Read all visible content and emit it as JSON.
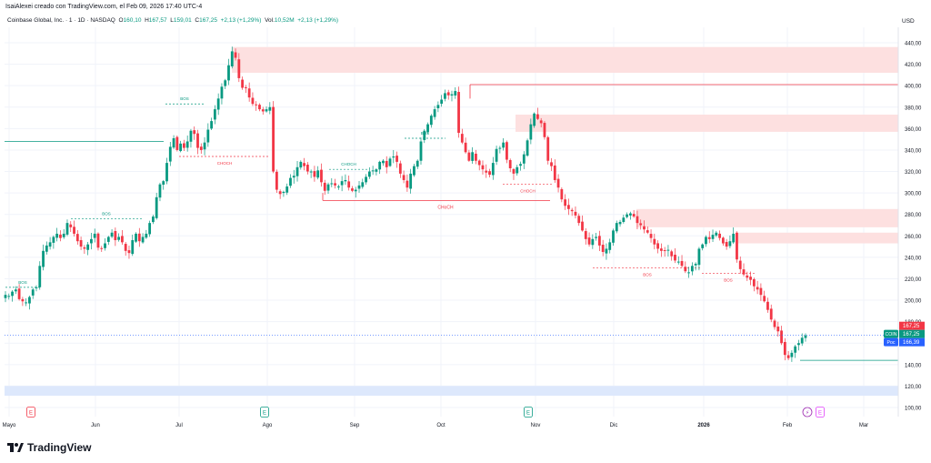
{
  "header": {
    "publish_line": "IsaiAlexei creado con TradingView.com, el Feb 09, 2026 17:40 UTC-4",
    "symbol": "Coinbase Global, Inc. · 1 · 1D · NASDAQ",
    "o_label": "O",
    "o_value": "160,10",
    "h_label": "H",
    "h_value": "167,57",
    "l_label": "L",
    "l_value": "159,01",
    "c_label": "C",
    "c_value": "167,25",
    "change": "+2,13 (+1,29%)",
    "vol_label": "Vol.",
    "vol_value": "10,52M",
    "vol_change": "+2,13 (+1,29%)",
    "currency": "USD"
  },
  "footer": {
    "brand": "TradingView"
  },
  "colors": {
    "up": "#089981",
    "down": "#f23645",
    "zone": "#fde0e0",
    "support_zone": "#dde8fc",
    "grid": "#f0f3fa",
    "label_bg": "#2962ff"
  },
  "price_tags": [
    {
      "text": "167,25",
      "color": "#f23645"
    },
    {
      "text": "COIN",
      "color": "#089981",
      "value": "167,25"
    },
    {
      "text": "Poc",
      "color": "#2962ff",
      "value": "166,39"
    }
  ],
  "event_markers": [
    {
      "letter": "E",
      "type": "earnings-red",
      "month_index": 0
    },
    {
      "letter": "E",
      "type": "earnings-green",
      "month_index": 3
    },
    {
      "letter": "E",
      "type": "earnings-green",
      "month_index": 6
    },
    {
      "letter": "⚡",
      "type": "dividend",
      "month_index": 9
    },
    {
      "letter": "E",
      "type": "earnings-purple",
      "month_index": 9
    }
  ],
  "annotations": [
    "BOS",
    "BOS",
    "BOS",
    "CHOCH",
    "CHOCH",
    "BOS",
    "CHoCH",
    "CHOCH",
    "BOS",
    "BOS"
  ],
  "chart_data": {
    "type": "candlestick",
    "x_ticks": [
      "Mayo",
      "Jun",
      "Jul",
      "Ago",
      "Sep",
      "Oct",
      "Nov",
      "Dic",
      "2026",
      "Feb",
      "Mar"
    ],
    "y_ticks": [
      "440,00",
      "420,00",
      "400,00",
      "380,00",
      "360,00",
      "340,00",
      "320,00",
      "300,00",
      "280,00",
      "260,00",
      "240,00",
      "220,00",
      "200,00",
      "180,00",
      "160,00",
      "140,00",
      "120,00",
      "100,00"
    ],
    "ylim": [
      100,
      445
    ],
    "grid": true,
    "last_price": 167.25,
    "closes": [
      205,
      204,
      208,
      210,
      201,
      199,
      198,
      203,
      210,
      212,
      232,
      246,
      251,
      254,
      259,
      262,
      258,
      262,
      272,
      268,
      262,
      255,
      250,
      248,
      252,
      257,
      262,
      249,
      248,
      253,
      259,
      263,
      256,
      259,
      254,
      246,
      244,
      256,
      262,
      255,
      259,
      262,
      272,
      278,
      296,
      308,
      311,
      328,
      343,
      351,
      340,
      346,
      342,
      348,
      358,
      355,
      342,
      340,
      347,
      359,
      367,
      378,
      388,
      399,
      405,
      419,
      432,
      426,
      407,
      398,
      398,
      389,
      383,
      382,
      378,
      376,
      378,
      380,
      320,
      303,
      299,
      301,
      306,
      314,
      316,
      324,
      329,
      325,
      320,
      320,
      315,
      321,
      310,
      302,
      308,
      309,
      307,
      306,
      311,
      312,
      305,
      302,
      303,
      307,
      310,
      315,
      320,
      321,
      322,
      329,
      330,
      324,
      332,
      334,
      329,
      318,
      312,
      305,
      318,
      325,
      330,
      348,
      358,
      364,
      372,
      378,
      382,
      387,
      393,
      391,
      392,
      395,
      356,
      347,
      338,
      330,
      338,
      330,
      326,
      322,
      319,
      317,
      328,
      341,
      342,
      347,
      331,
      323,
      318,
      324,
      327,
      336,
      349,
      364,
      374,
      369,
      365,
      352,
      330,
      325,
      312,
      305,
      294,
      288,
      285,
      283,
      279,
      272,
      265,
      257,
      252,
      257,
      259,
      251,
      245,
      248,
      254,
      265,
      272,
      273,
      277,
      280,
      281,
      278,
      272,
      270,
      266,
      263,
      258,
      252,
      248,
      246,
      246,
      247,
      241,
      237,
      236,
      232,
      227,
      226,
      232,
      234,
      248,
      252,
      259,
      257,
      261,
      263,
      258,
      253,
      250,
      255,
      262,
      238,
      229,
      224,
      221,
      219,
      213,
      210,
      205,
      199,
      191,
      182,
      175,
      171,
      160,
      149,
      146,
      151,
      157,
      160,
      165,
      167.25
    ],
    "supply_zones": [
      [
        412,
        436
      ],
      [
        357,
        373
      ],
      [
        268,
        285
      ],
      [
        253,
        263
      ]
    ],
    "demand_zones": [
      [
        111,
        120
      ]
    ],
    "levels": [
      {
        "label": "BOS",
        "price": 212,
        "kind": "bos"
      },
      {
        "label": "BOS",
        "price": 276,
        "kind": "bos"
      },
      {
        "label": "BOS",
        "price": 383,
        "kind": "bos"
      },
      {
        "label": "CHOCH",
        "price": 334,
        "kind": "choch"
      },
      {
        "label": "CHOCH",
        "price": 322,
        "kind": "choch"
      },
      {
        "label": "BOS",
        "price": 351,
        "kind": "bos"
      },
      {
        "label": "CHoCH",
        "price": 293,
        "kind": "choch"
      },
      {
        "label": "CHOCH",
        "price": 308,
        "kind": "choch"
      },
      {
        "label": "BOS",
        "price": 230,
        "kind": "bos"
      },
      {
        "label": "BOS",
        "price": 225,
        "kind": "bos"
      }
    ],
    "resistance_line": 401,
    "support_line_prev": 348,
    "low_line": 144
  }
}
